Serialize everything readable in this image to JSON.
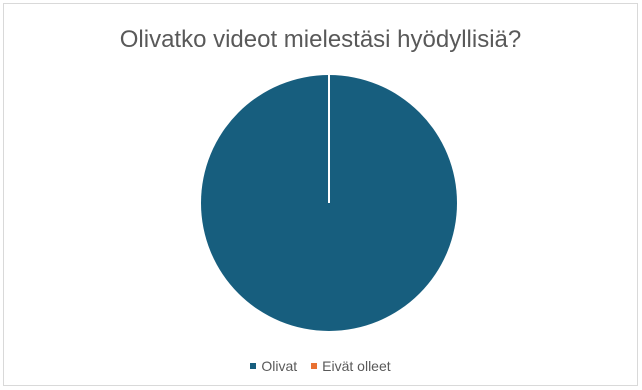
{
  "chart_data": {
    "type": "pie",
    "title": "Olivatko videot mielestäsi hyödyllisiä?",
    "categories": [
      "Olivat",
      "Eivät olleet"
    ],
    "values": [
      100,
      0
    ],
    "colors": [
      "#175e7e",
      "#e97132"
    ],
    "legend": "bottom"
  }
}
